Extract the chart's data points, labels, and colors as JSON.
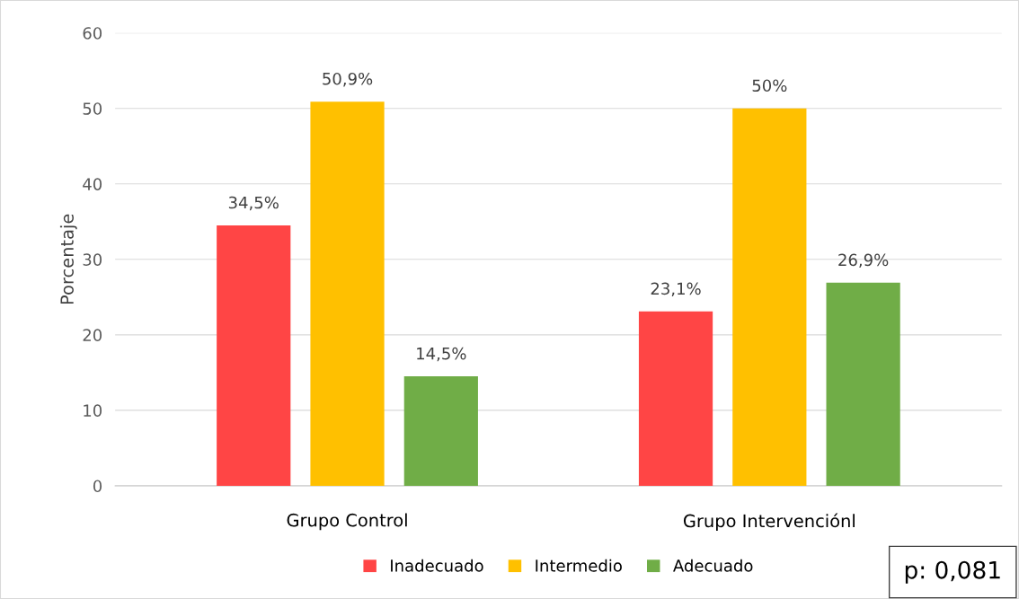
{
  "chart_data": {
    "type": "bar",
    "ylabel": "Porcentaje",
    "categories": [
      "Grupo Control",
      "Grupo Intervenciónl"
    ],
    "series": [
      {
        "name": "Inadecuado",
        "color": "#ff4545",
        "values": [
          34.5,
          23.1
        ],
        "value_labels": [
          "34,5%",
          "23,1%"
        ]
      },
      {
        "name": "Intermedio",
        "color": "#ffc000",
        "values": [
          50.9,
          50
        ],
        "value_labels": [
          "50,9%",
          "50%"
        ]
      },
      {
        "name": "Adecuado",
        "color": "#70ad47",
        "values": [
          14.5,
          26.9
        ],
        "value_labels": [
          "14,5%",
          "26,9%"
        ]
      }
    ],
    "ylim": [
      0,
      60
    ],
    "yticks": [
      0,
      10,
      20,
      30,
      40,
      50,
      60
    ],
    "grid": "y",
    "legend": "bottom",
    "annotations": [
      "p: 0,081"
    ]
  }
}
